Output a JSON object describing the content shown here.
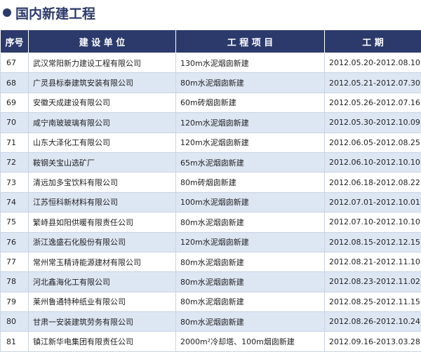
{
  "header": {
    "title": "国内新建工程"
  },
  "table": {
    "columns": [
      "序号",
      "建 设 单 位",
      "工 程 项 目",
      "工 期"
    ],
    "rows": [
      [
        "67",
        "武汉常阳新力建设工程有限公司",
        "130m水泥烟囱新建",
        "2012.05.20-2012.08.10"
      ],
      [
        "68",
        "广灵县标泰建筑安装有限公司",
        "80m水泥烟囱新建",
        "2012.05.21-2012.07.30"
      ],
      [
        "69",
        "安徽天成建设有限公司",
        "60m砖烟囱新建",
        "2012.05.26-2012.07.16"
      ],
      [
        "70",
        "咸宁南玻玻璃有限公司",
        "120m水泥烟囱新建",
        "2012.05.30-2012.10.09"
      ],
      [
        "71",
        "山东大泽化工有限公司",
        "120m水泥烟囱新建",
        "2012.06.05-2012.08.25"
      ],
      [
        "72",
        "鞍钢关宝山选矿厂",
        "65m水泥烟囱新建",
        "2012.06.10-2012.10.10"
      ],
      [
        "73",
        "清远加多宝饮料有限公司",
        "80m砖烟囱新建",
        "2012.06.18-2012.08.22"
      ],
      [
        "74",
        "江苏恒科新材料有限公司",
        "100m水泥烟囱新建",
        "2012.07.01-2012.10.01"
      ],
      [
        "75",
        "繁峙县如阳供暖有限责任公司",
        "80m水泥烟囱新建",
        "2012.07.10-2012.10.10"
      ],
      [
        "76",
        "浙江逸盛石化股份有限公司",
        "120m水泥烟囱新建",
        "2012.08.15-2012.12.15"
      ],
      [
        "77",
        "常州常玉精诗能源建材有限公司",
        "80m水泥烟囱新建",
        "2012.08.21-2012.11.10"
      ],
      [
        "78",
        "河北鑫海化工有限公司",
        "80m水泥烟囱新建",
        "2012.08.23-2012.11.02"
      ],
      [
        "79",
        "莱州鲁通特种纸业有限公司",
        "80m水泥烟囱新建",
        "2012.08.25-2012.11.15"
      ],
      [
        "80",
        "甘肃一安装建筑劳务有限公司",
        "80m水泥烟囱新建",
        "2012.08.26-2012.10.24"
      ],
      [
        "81",
        "镇江新华电集团有限责任公司",
        "2000m²冷却塔、100m烟囱新建",
        "2012.09.16-2013.03.28"
      ]
    ]
  }
}
